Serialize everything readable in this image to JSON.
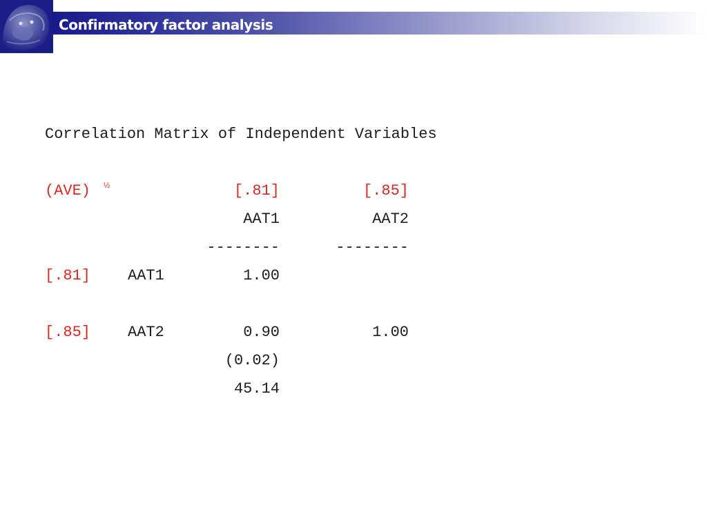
{
  "slide": {
    "title": "Confirmatory factor analysis"
  },
  "colors": {
    "header_dark": "#171a8c",
    "accent_red": "#d8291f",
    "text": "#1e1e1e"
  },
  "logo": {
    "icon": "lion-emblem-icon"
  },
  "table": {
    "heading": "Correlation Matrix of Independent Variables",
    "ave_label": "(AVE)",
    "ave_superscript": "½",
    "column_ave": [
      "[.81]",
      "[.85]"
    ],
    "column_headers": [
      "AAT1",
      "AAT2"
    ],
    "column_rules": [
      "--------",
      "--------"
    ],
    "rows": [
      {
        "ave": "[.81]",
        "label": "AAT1",
        "values": [
          "1.00",
          ""
        ]
      },
      {
        "ave": "[.85]",
        "label": "AAT2",
        "values": [
          "0.90",
          "1.00"
        ],
        "std_error": "(0.02)",
        "t_value": "45.14"
      }
    ]
  }
}
